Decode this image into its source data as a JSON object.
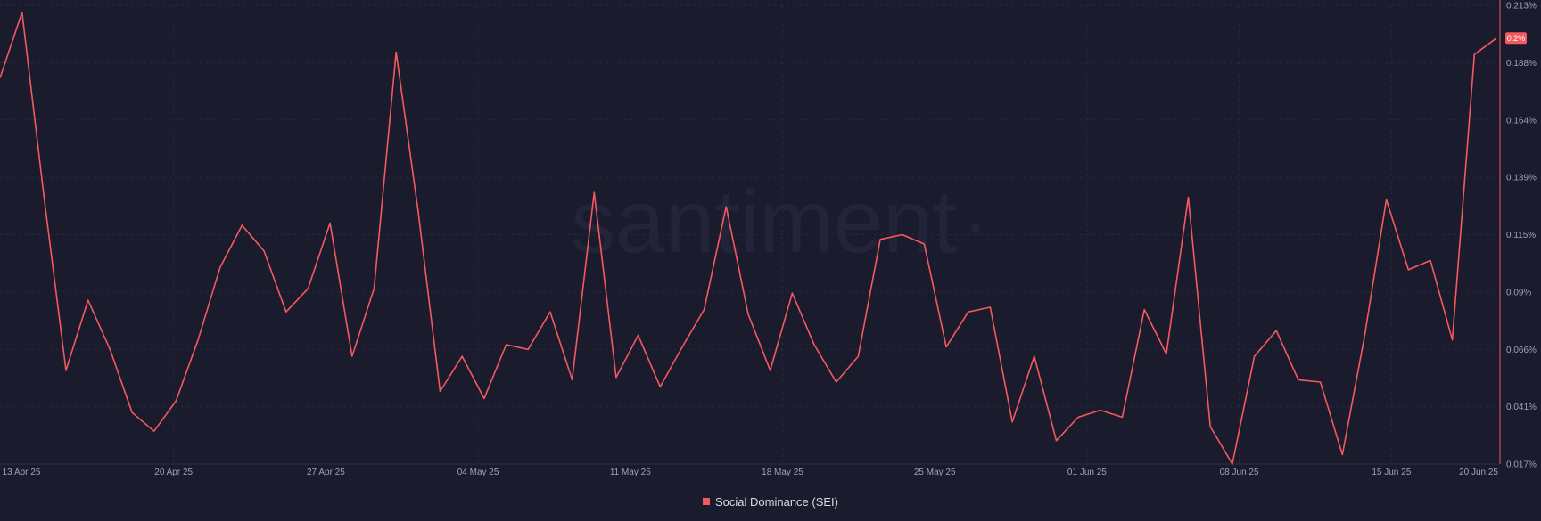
{
  "chart_data": {
    "type": "line",
    "watermark": "santiment",
    "y_ticks": [
      "0.213%",
      "0.188%",
      "0.164%",
      "0.139%",
      "0.115%",
      "0.09%",
      "0.066%",
      "0.041%",
      "0.017%"
    ],
    "x_ticks": [
      "13 Apr 25",
      "20 Apr 25",
      "27 Apr 25",
      "04 May 25",
      "11 May 25",
      "18 May 25",
      "25 May 25",
      "01 Jun 25",
      "08 Jun 25",
      "15 Jun 25",
      "20 Jun 25"
    ],
    "ylim": [
      0.017,
      0.213
    ],
    "last_value_label": "0.2%",
    "grid": true,
    "legend_position": "bottom-center",
    "series": [
      {
        "name": "Social Dominance (SEI)",
        "color": "#f4595f",
        "values": [
          0.182,
          0.21,
          0.131,
          0.057,
          0.087,
          0.066,
          0.039,
          0.031,
          0.044,
          0.07,
          0.101,
          0.119,
          0.108,
          0.082,
          0.092,
          0.12,
          0.063,
          0.092,
          0.193,
          0.125,
          0.048,
          0.063,
          0.045,
          0.068,
          0.066,
          0.082,
          0.053,
          0.133,
          0.054,
          0.072,
          0.05,
          0.067,
          0.083,
          0.127,
          0.081,
          0.057,
          0.09,
          0.068,
          0.052,
          0.063,
          0.113,
          0.115,
          0.111,
          0.067,
          0.082,
          0.084,
          0.035,
          0.063,
          0.027,
          0.037,
          0.04,
          0.037,
          0.083,
          0.064,
          0.131,
          0.033,
          0.017,
          0.063,
          0.074,
          0.053,
          0.052,
          0.021,
          0.071,
          0.13,
          0.1,
          0.104,
          0.07,
          0.192,
          0.199
        ]
      }
    ]
  }
}
